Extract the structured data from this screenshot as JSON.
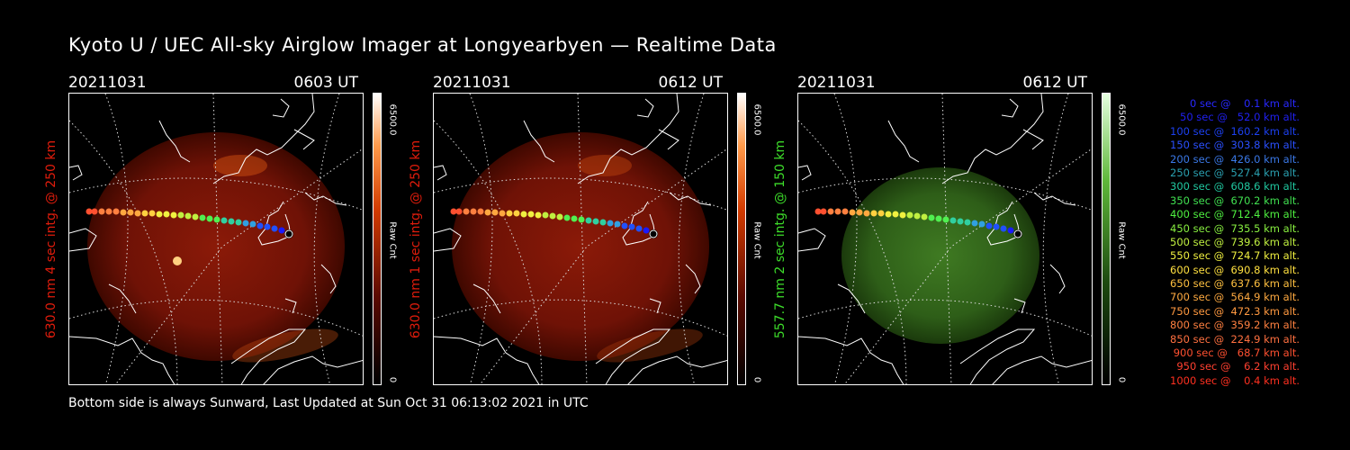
{
  "title": "Kyoto U / UEC All-sky Airglow Imager at Longyearbyen — Realtime Data",
  "footer": "Bottom side is always Sunward, Last Updated at Sun Oct 31 06:13:02 2021 in UTC",
  "colors": {
    "red_label": "#e01c0c",
    "green_label": "#3ddc2a"
  },
  "panels": [
    {
      "date": "20211031",
      "time": "0603 UT",
      "side_label": "630.0 nm 4 sec intg. @ 250 km",
      "side_color": "#e01c0c",
      "cbar_max": "6500.0",
      "cbar_min": "0",
      "cbar_unit": "Raw Cnt",
      "tone": "red"
    },
    {
      "date": "20211031",
      "time": "0612 UT",
      "side_label": "630.0 nm 1 sec intg. @ 250 km",
      "side_color": "#e01c0c",
      "cbar_max": "6500.0",
      "cbar_min": "0",
      "cbar_unit": "Raw Cnt",
      "tone": "red"
    },
    {
      "date": "20211031",
      "time": "0612 UT",
      "side_label": "557.7 nm 2 sec intg. @ 150 km",
      "side_color": "#3ddc2a",
      "cbar_max": "6500.0",
      "cbar_min": "0",
      "cbar_unit": "Raw Cnt",
      "tone": "green"
    }
  ],
  "legend": [
    {
      "text": "0 sec @    0.1 km alt.",
      "color": "#2828ff"
    },
    {
      "text": "50 sec @   52.0 km alt.",
      "color": "#2020f0"
    },
    {
      "text": "100 sec @  160.2 km alt.",
      "color": "#1c40f0"
    },
    {
      "text": "150 sec @  303.8 km alt.",
      "color": "#2a50ff"
    },
    {
      "text": "200 sec @  426.0 km alt.",
      "color": "#3a78e6"
    },
    {
      "text": "250 sec @  527.4 km alt.",
      "color": "#2aa0b0"
    },
    {
      "text": "300 sec @  608.6 km alt.",
      "color": "#20c8a0"
    },
    {
      "text": "350 sec @  670.2 km alt.",
      "color": "#40e050"
    },
    {
      "text": "400 sec @  712.4 km alt.",
      "color": "#4ff040"
    },
    {
      "text": "450 sec @  735.5 km alt.",
      "color": "#88f040"
    },
    {
      "text": "500 sec @  739.6 km alt.",
      "color": "#c0f040"
    },
    {
      "text": "550 sec @  724.7 km alt.",
      "color": "#f0f040"
    },
    {
      "text": "600 sec @  690.8 km alt.",
      "color": "#ffe040"
    },
    {
      "text": "650 sec @  637.6 km alt.",
      "color": "#ffc040"
    },
    {
      "text": "700 sec @  564.9 km alt.",
      "color": "#ffaa40"
    },
    {
      "text": "750 sec @  472.3 km alt.",
      "color": "#ff9940"
    },
    {
      "text": "800 sec @  359.2 km alt.",
      "color": "#ff8040"
    },
    {
      "text": "850 sec @  224.9 km alt.",
      "color": "#ff7040"
    },
    {
      "text": "900 sec @   68.7 km alt.",
      "color": "#ff5030"
    },
    {
      "text": "950 sec @    6.2 km alt.",
      "color": "#ff4030"
    },
    {
      "text": "1000 sec @    0.4 km alt.",
      "color": "#ff3020"
    }
  ]
}
